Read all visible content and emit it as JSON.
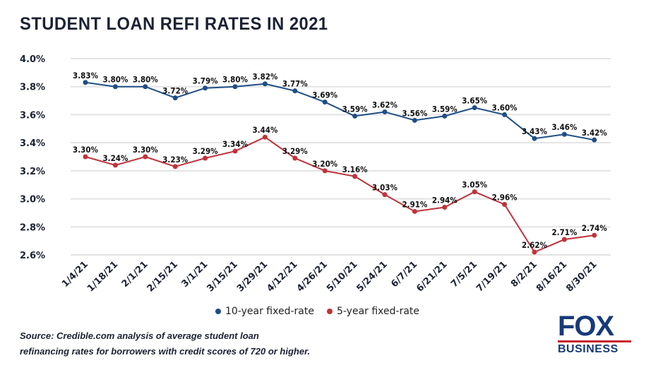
{
  "chart_data": {
    "type": "line",
    "title": "STUDENT LOAN REFI RATES IN 2021",
    "categories": [
      "1/4/21",
      "1/18/21",
      "2/1/21",
      "2/15/21",
      "3/1/21",
      "3/15/21",
      "3/29/21",
      "4/12/21",
      "4/26/21",
      "5/10/21",
      "5/24/21",
      "6/7/21",
      "6/21/21",
      "7/5/21",
      "7/19/21",
      "8/2/21",
      "8/16/21",
      "8/30/21"
    ],
    "yticks": [
      "4.0%",
      "3.8%",
      "3.6%",
      "3.4%",
      "3.2%",
      "3.0%",
      "2.8%",
      "2.6%"
    ],
    "ylim": [
      2.6,
      4.0
    ],
    "grid": true,
    "legend": "bottom",
    "series": [
      {
        "name": "10-year fixed-rate",
        "color": "#1f4e85",
        "values": [
          3.83,
          3.8,
          3.8,
          3.72,
          3.79,
          3.8,
          3.82,
          3.77,
          3.69,
          3.59,
          3.62,
          3.56,
          3.59,
          3.65,
          3.6,
          3.43,
          3.46,
          3.42
        ]
      },
      {
        "name": "5-year fixed-rate",
        "color": "#c0323a",
        "values": [
          3.3,
          3.24,
          3.3,
          3.23,
          3.29,
          3.34,
          3.44,
          3.29,
          3.2,
          3.16,
          3.03,
          2.91,
          2.94,
          3.05,
          2.96,
          2.62,
          2.71,
          2.74
        ]
      }
    ]
  },
  "source": {
    "line1": "Source: Credible.com analysis of average student loan",
    "line2": "refinancing rates for borrowers with credit scores of 720 or higher."
  },
  "logo": {
    "top": "FOX",
    "bottom": "BUSINESS"
  }
}
